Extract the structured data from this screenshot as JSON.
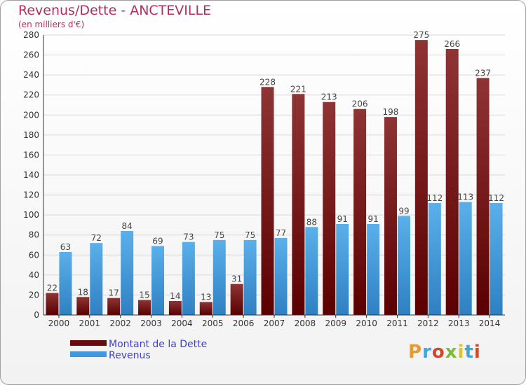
{
  "title": "Revenus/Dette - ANCTEVILLE",
  "subtitle": "(en milliers d'€)",
  "logo": {
    "text": "Proxiti",
    "colors": [
      "#e69a2e",
      "#3fa5de",
      "#cf4a2c",
      "#7bbd3a",
      "#e3c02d",
      "#3fa5de",
      "#cf4a2c"
    ]
  },
  "colors": {
    "dette_top": "#8e3434",
    "dette_bottom": "#5a0000",
    "revenus_top": "#5ab0ea",
    "revenus_bottom": "#2f80c2",
    "legend_dette": "#6a0b0b",
    "legend_revenus": "#3f97dc"
  },
  "chart_data": {
    "type": "bar",
    "categories": [
      "2000",
      "2001",
      "2002",
      "2003",
      "2004",
      "2005",
      "2006",
      "2007",
      "2008",
      "2009",
      "2010",
      "2011",
      "2012",
      "2013",
      "2014"
    ],
    "series": [
      {
        "name": "Montant de la Dette",
        "values": [
          22,
          18,
          17,
          15,
          14,
          13,
          31,
          228,
          221,
          213,
          206,
          198,
          275,
          266,
          237
        ]
      },
      {
        "name": "Revenus",
        "values": [
          63,
          72,
          84,
          69,
          73,
          75,
          75,
          77,
          88,
          91,
          91,
          99,
          112,
          113,
          112
        ]
      }
    ],
    "ylim": [
      0,
      280
    ],
    "yticks": [
      0,
      20,
      40,
      60,
      80,
      100,
      120,
      140,
      160,
      180,
      200,
      220,
      240,
      260,
      280
    ],
    "grid": true,
    "legend": "bottom-left"
  }
}
